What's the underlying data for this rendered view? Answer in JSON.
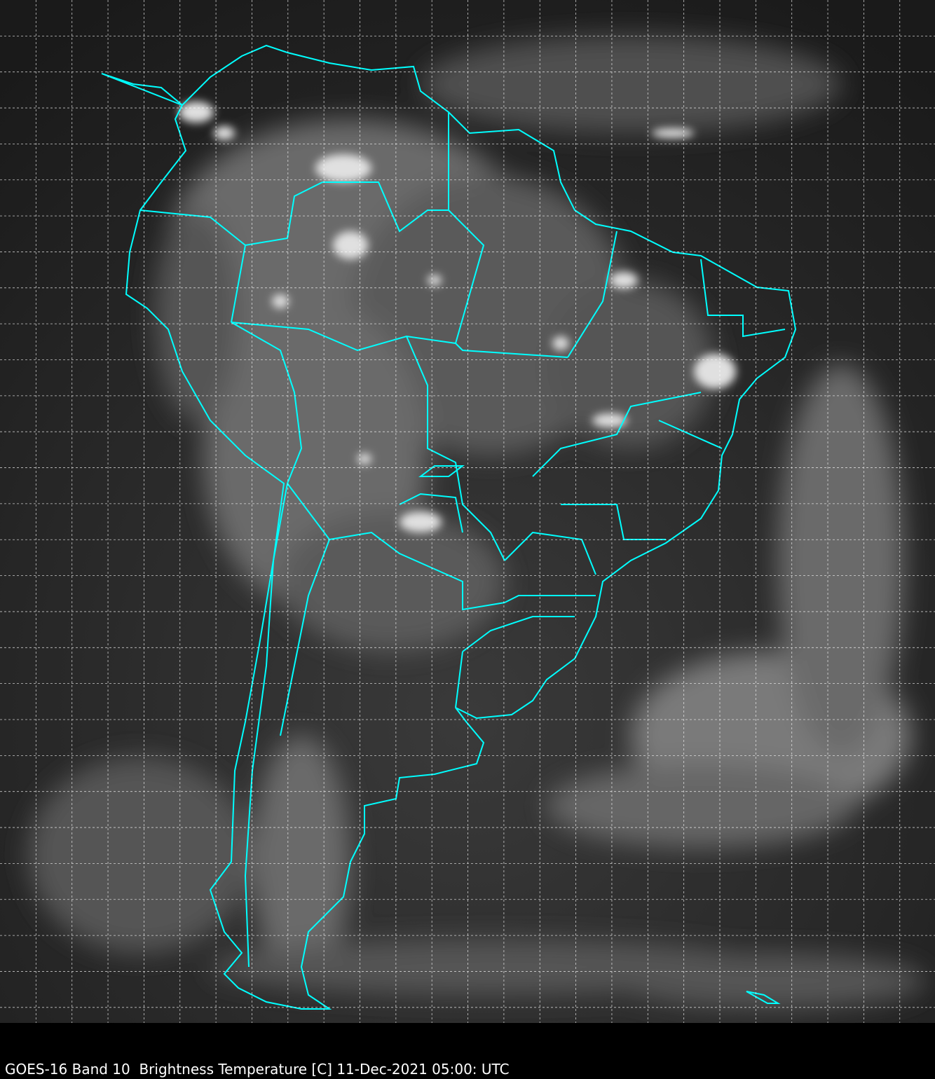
{
  "caption": "GOES-16 Band 10  Brightness Temperature [C] 11-Dec-2021 05:00: UTC",
  "colors": {
    "border": "#00ffff",
    "grid": "#ffffff",
    "background": "#000000"
  },
  "grid": {
    "visible": true,
    "style": "dashed"
  }
}
